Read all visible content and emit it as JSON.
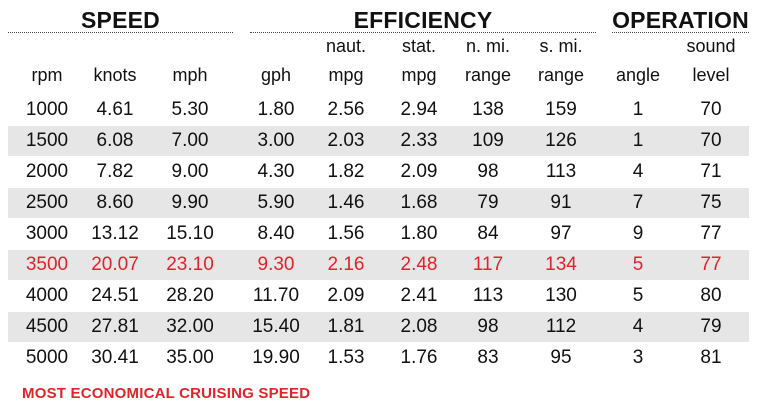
{
  "groups": [
    {
      "label": "SPEED"
    },
    {
      "label": "EFFICIENCY"
    },
    {
      "label": "OPERATION"
    }
  ],
  "columns": [
    {
      "line1": "",
      "line2": "rpm"
    },
    {
      "line1": "",
      "line2": "knots"
    },
    {
      "line1": "",
      "line2": "mph"
    },
    {
      "line1": "",
      "line2": "gph"
    },
    {
      "line1": "naut.",
      "line2": "mpg"
    },
    {
      "line1": "stat.",
      "line2": "mpg"
    },
    {
      "line1": "n. mi.",
      "line2": "range"
    },
    {
      "line1": "s. mi.",
      "line2": "range"
    },
    {
      "line1": "",
      "line2": "angle"
    },
    {
      "line1": "sound",
      "line2": "level"
    }
  ],
  "rows": [
    [
      "1000",
      "4.61",
      "5.30",
      "1.80",
      "2.56",
      "2.94",
      "138",
      "159",
      "1",
      "70"
    ],
    [
      "1500",
      "6.08",
      "7.00",
      "3.00",
      "2.03",
      "2.33",
      "109",
      "126",
      "1",
      "70"
    ],
    [
      "2000",
      "7.82",
      "9.00",
      "4.30",
      "1.82",
      "2.09",
      "98",
      "113",
      "4",
      "71"
    ],
    [
      "2500",
      "8.60",
      "9.90",
      "5.90",
      "1.46",
      "1.68",
      "79",
      "91",
      "7",
      "75"
    ],
    [
      "3000",
      "13.12",
      "15.10",
      "8.40",
      "1.56",
      "1.80",
      "84",
      "97",
      "9",
      "77"
    ],
    [
      "3500",
      "20.07",
      "23.10",
      "9.30",
      "2.16",
      "2.48",
      "117",
      "134",
      "5",
      "77"
    ],
    [
      "4000",
      "24.51",
      "28.20",
      "11.70",
      "2.09",
      "2.41",
      "113",
      "130",
      "5",
      "80"
    ],
    [
      "4500",
      "27.81",
      "32.00",
      "15.40",
      "1.81",
      "2.08",
      "98",
      "112",
      "4",
      "79"
    ],
    [
      "5000",
      "30.41",
      "35.00",
      "19.90",
      "1.53",
      "1.76",
      "83",
      "95",
      "3",
      "81"
    ]
  ],
  "highlight_row_index": 5,
  "highlight_color": "#e0242a",
  "shade_color": "#e6e6e6",
  "footnote": "MOST ECONOMICAL CRUISING SPEED"
}
